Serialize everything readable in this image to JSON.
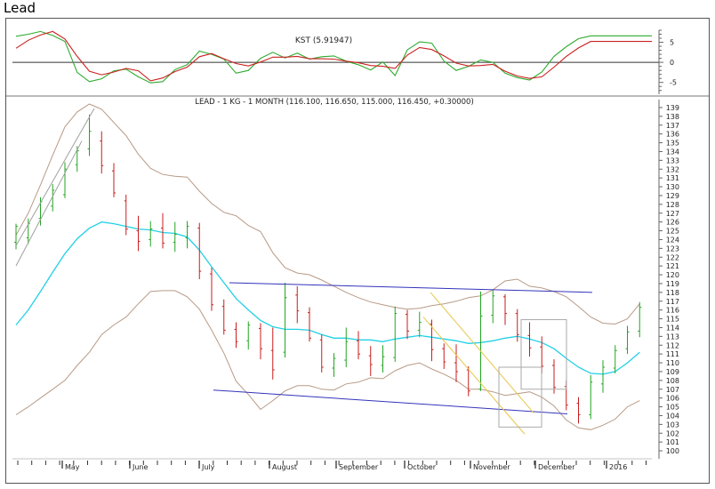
{
  "page": {
    "title": "Lead"
  },
  "chart_data": {
    "type": "bar",
    "kst_panel": {
      "title": "KST (5.91947)",
      "y_ticks": [
        "5",
        "0",
        "-5"
      ],
      "ylim": [
        -7.5,
        8
      ],
      "x": [
        0.0,
        4.5,
        9.0,
        13.5,
        18.0,
        22.5,
        27.0,
        31.5,
        36.0,
        40.5,
        45.0,
        49.5,
        54.0,
        58.5,
        63.0,
        67.5,
        72.0,
        76.5,
        81.0,
        85.5,
        90.0,
        94.5,
        99.0,
        103.5,
        108.0,
        112.5,
        117.0,
        121.5,
        126.0,
        130.5,
        135.0,
        139.5,
        144.0,
        148.5,
        153.0,
        157.5,
        162.0,
        166.5,
        171.0,
        175.5,
        180.0,
        184.5,
        189.0,
        193.5,
        198.0,
        202.5,
        207.0,
        211.5,
        216.0,
        220.5,
        225.0,
        229.5,
        234.0
      ],
      "series": [
        {
          "color": "#2eaa2e",
          "values": [
            6.5,
            7.0,
            7.7,
            6.7,
            5.2,
            -2.5,
            -4.8,
            -4.1,
            -2.1,
            -1.7,
            -3.6,
            -5.1,
            -4.8,
            -1.8,
            -0.6,
            2.8,
            2.0,
            0.8,
            -2.7,
            -2.0,
            1.0,
            2.5,
            1.1,
            2.3,
            0.8,
            1.4,
            1.6,
            0.3,
            -0.6,
            -1.9,
            0.1,
            -3.3,
            3.1,
            5.1,
            4.8,
            0.3,
            -2.0,
            -1.0,
            0.6,
            0.0,
            -2.7,
            -3.8,
            -4.4,
            -2.4,
            1.5,
            3.9,
            5.9,
            6.6,
            6.6,
            6.6,
            6.6,
            6.6,
            6.6
          ]
        },
        {
          "color": "#cc2020",
          "values": [
            3.5,
            5.5,
            6.8,
            7.7,
            5.8,
            1.5,
            -2.2,
            -3.1,
            -2.4,
            -1.5,
            -2.1,
            -4.6,
            -3.9,
            -2.3,
            -1.2,
            1.4,
            2.2,
            0.9,
            -0.3,
            -0.9,
            0.1,
            1.3,
            1.3,
            1.5,
            0.9,
            0.9,
            0.8,
            0.3,
            -0.1,
            -0.8,
            -1.0,
            -1.5,
            1.8,
            3.7,
            3.2,
            1.6,
            -0.2,
            -0.9,
            -0.8,
            -0.5,
            -2.2,
            -3.4,
            -4.0,
            -3.6,
            -1.2,
            1.5,
            3.6,
            5.2,
            5.2,
            5.2,
            5.2,
            5.2,
            5.2
          ]
        }
      ]
    },
    "price_panel": {
      "title": "LEAD - 1 KG - 1 MONTH (116.100, 116.650, 115.000, 116.450, +0.30000)",
      "ylim": [
        99.5,
        139.5
      ],
      "y_ticks": [
        100,
        101,
        102,
        103,
        104,
        105,
        106,
        107,
        108,
        109,
        110,
        111,
        112,
        113,
        114,
        115,
        116,
        117,
        118,
        119,
        120,
        121,
        122,
        123,
        124,
        125,
        126,
        127,
        128,
        129,
        130,
        131,
        132,
        133,
        134,
        135,
        136,
        137,
        138,
        139
      ],
      "candles": [
        {
          "x": 0,
          "o": 123.7,
          "c": 125.5,
          "h": 125.8,
          "l": 122.9
        },
        {
          "x": 4.5,
          "o": 124.2,
          "c": 125.8,
          "h": 126.4,
          "l": 123.5
        },
        {
          "x": 9,
          "o": 126.4,
          "c": 128.3,
          "h": 128.8,
          "l": 125.6
        },
        {
          "x": 13.5,
          "o": 127.8,
          "c": 129.6,
          "h": 130.3,
          "l": 127.2
        },
        {
          "x": 18,
          "o": 129.1,
          "c": 132.0,
          "h": 132.8,
          "l": 128.7
        },
        {
          "x": 22.5,
          "o": 132.5,
          "c": 134.1,
          "h": 134.6,
          "l": 131.7
        },
        {
          "x": 27,
          "o": 134.3,
          "c": 136.3,
          "h": 138.2,
          "l": 133.5
        },
        {
          "x": 31.5,
          "o": 135.2,
          "c": 132.4,
          "h": 136.3,
          "l": 131.5
        },
        {
          "x": 36,
          "o": 131.8,
          "c": 129.3,
          "h": 132.7,
          "l": 128.8
        },
        {
          "x": 40.5,
          "o": 128.4,
          "c": 125.2,
          "h": 129.1,
          "l": 124.5
        },
        {
          "x": 45,
          "o": 125.0,
          "c": 123.8,
          "h": 126.7,
          "l": 122.7
        },
        {
          "x": 49.5,
          "o": 124.0,
          "c": 125.2,
          "h": 126.1,
          "l": 123.2
        },
        {
          "x": 54,
          "o": 125.3,
          "c": 123.6,
          "h": 127.0,
          "l": 123.0
        },
        {
          "x": 58.5,
          "o": 123.7,
          "c": 124.6,
          "h": 126.0,
          "l": 122.6
        },
        {
          "x": 63,
          "o": 124.2,
          "c": 125.5,
          "h": 126.1,
          "l": 123.0
        },
        {
          "x": 67.5,
          "o": 125.3,
          "c": 120.4,
          "h": 125.9,
          "l": 119.5
        },
        {
          "x": 72,
          "o": 120.1,
          "c": 116.6,
          "h": 120.8,
          "l": 115.9
        },
        {
          "x": 76.5,
          "o": 116.4,
          "c": 113.7,
          "h": 117.2,
          "l": 113.2
        },
        {
          "x": 81,
          "o": 113.8,
          "c": 112.4,
          "h": 114.6,
          "l": 111.7
        },
        {
          "x": 85.5,
          "o": 112.5,
          "c": 114.3,
          "h": 114.7,
          "l": 111.5
        },
        {
          "x": 90,
          "o": 113.9,
          "c": 111.6,
          "h": 114.5,
          "l": 110.4
        },
        {
          "x": 94.5,
          "o": 111.4,
          "c": 109.2,
          "h": 114.0,
          "l": 108.1
        },
        {
          "x": 99,
          "o": 111.2,
          "c": 117.4,
          "h": 119.1,
          "l": 110.6
        },
        {
          "x": 103.5,
          "o": 117.7,
          "c": 115.9,
          "h": 118.7,
          "l": 114.5
        },
        {
          "x": 108,
          "o": 115.7,
          "c": 112.8,
          "h": 116.3,
          "l": 112.4
        },
        {
          "x": 112.5,
          "o": 112.6,
          "c": 109.5,
          "h": 113.2,
          "l": 108.9
        },
        {
          "x": 117,
          "o": 109.4,
          "c": 110.5,
          "h": 111.1,
          "l": 108.4
        },
        {
          "x": 121.5,
          "o": 110.3,
          "c": 112.4,
          "h": 114.0,
          "l": 109.5
        },
        {
          "x": 126,
          "o": 112.5,
          "c": 111.0,
          "h": 113.6,
          "l": 110.4
        },
        {
          "x": 130.5,
          "o": 110.8,
          "c": 109.8,
          "h": 111.9,
          "l": 108.5
        },
        {
          "x": 135,
          "o": 109.7,
          "c": 110.7,
          "h": 112.0,
          "l": 108.9
        },
        {
          "x": 139.5,
          "o": 110.6,
          "c": 115.6,
          "h": 116.4,
          "l": 110.1
        },
        {
          "x": 144,
          "o": 115.5,
          "c": 113.6,
          "h": 116.0,
          "l": 112.7
        },
        {
          "x": 148.5,
          "o": 113.7,
          "c": 114.6,
          "h": 115.8,
          "l": 112.9
        },
        {
          "x": 153,
          "o": 114.4,
          "c": 111.5,
          "h": 114.9,
          "l": 110.2
        },
        {
          "x": 157.5,
          "o": 111.6,
          "c": 110.1,
          "h": 112.2,
          "l": 109.3
        },
        {
          "x": 162,
          "o": 110.0,
          "c": 109.0,
          "h": 112.1,
          "l": 107.8
        },
        {
          "x": 166.5,
          "o": 109.2,
          "c": 106.8,
          "h": 109.6,
          "l": 106.2
        },
        {
          "x": 171,
          "o": 107.0,
          "c": 115.3,
          "h": 118.1,
          "l": 106.8
        },
        {
          "x": 175.5,
          "o": 115.4,
          "c": 117.6,
          "h": 118.3,
          "l": 114.5
        },
        {
          "x": 180,
          "o": 117.5,
          "c": 115.6,
          "h": 117.8,
          "l": 114.3
        },
        {
          "x": 184.5,
          "o": 115.6,
          "c": 113.2,
          "h": 116.1,
          "l": 112.4
        },
        {
          "x": 189,
          "o": 113.1,
          "c": 111.7,
          "h": 114.6,
          "l": 110.7
        },
        {
          "x": 193.5,
          "o": 111.8,
          "c": 109.6,
          "h": 113.0,
          "l": 108.8
        },
        {
          "x": 198,
          "o": 109.7,
          "c": 107.2,
          "h": 110.4,
          "l": 106.5
        },
        {
          "x": 202.5,
          "o": 107.3,
          "c": 105.2,
          "h": 108.0,
          "l": 104.6
        },
        {
          "x": 207,
          "o": 105.4,
          "c": 104.1,
          "h": 106.1,
          "l": 103.1
        },
        {
          "x": 211.5,
          "o": 104.1,
          "c": 107.8,
          "h": 108.6,
          "l": 103.6
        },
        {
          "x": 216,
          "o": 107.6,
          "c": 109.5,
          "h": 110.3,
          "l": 106.6
        },
        {
          "x": 220.5,
          "o": 109.4,
          "c": 111.4,
          "h": 112.0,
          "l": 108.8
        },
        {
          "x": 225,
          "o": 111.6,
          "c": 113.5,
          "h": 114.2,
          "l": 111.0
        },
        {
          "x": 229.5,
          "o": 113.6,
          "c": 116.3,
          "h": 116.9,
          "l": 112.9
        }
      ],
      "moving_average": {
        "color": "#22d0e6",
        "values": [
          114.3,
          116.0,
          118.1,
          120.3,
          122.4,
          124.1,
          125.3,
          126.0,
          125.8,
          125.5,
          125.2,
          125.1,
          124.8,
          124.7,
          124.3,
          122.8,
          120.9,
          119.1,
          117.3,
          116.0,
          114.8,
          114.1,
          113.8,
          113.8,
          113.7,
          113.2,
          112.8,
          112.8,
          112.6,
          112.6,
          112.4,
          112.7,
          112.9,
          113.1,
          112.9,
          112.7,
          112.5,
          112.2,
          112.3,
          112.5,
          112.8,
          113.0,
          112.7,
          112.3,
          111.6,
          110.5,
          109.5,
          108.8,
          108.7,
          109.0,
          110.0,
          111.2
        ]
      },
      "upper_band": {
        "color": "#b89a86",
        "values": [
          124.5,
          127.0,
          130.2,
          133.6,
          136.8,
          138.5,
          139.4,
          138.8,
          137.3,
          135.8,
          133.7,
          132.1,
          131.4,
          131.2,
          131.1,
          129.5,
          128.1,
          127.1,
          126.7,
          125.6,
          124.9,
          122.5,
          120.8,
          120.2,
          120.0,
          119.4,
          118.7,
          118.0,
          117.4,
          116.9,
          116.6,
          116.3,
          116.1,
          116.2,
          116.5,
          116.7,
          117.0,
          117.4,
          117.6,
          118.3,
          119.3,
          119.5,
          118.7,
          118.5,
          118.1,
          117.5,
          116.4,
          115.2,
          114.5,
          114.4,
          115.0,
          116.7
        ]
      },
      "lower_band": {
        "color": "#b89a86",
        "values": [
          104.1,
          105.0,
          106.0,
          107.0,
          108.0,
          109.7,
          111.2,
          113.2,
          114.3,
          115.2,
          116.7,
          118.1,
          118.2,
          118.2,
          117.5,
          116.1,
          113.7,
          111.1,
          107.9,
          106.4,
          104.7,
          105.7,
          106.8,
          107.4,
          107.4,
          107.0,
          106.9,
          107.6,
          107.8,
          108.3,
          108.2,
          109.1,
          109.7,
          110.0,
          109.3,
          108.7,
          108.0,
          107.0,
          107.0,
          106.7,
          106.3,
          106.5,
          106.7,
          106.1,
          105.1,
          103.5,
          102.6,
          102.4,
          102.9,
          103.6,
          105.0,
          105.7
        ]
      },
      "x_labels": [
        "May",
        "June",
        "July",
        "August",
        "September",
        "October",
        "November",
        "December",
        "2016"
      ]
    }
  }
}
